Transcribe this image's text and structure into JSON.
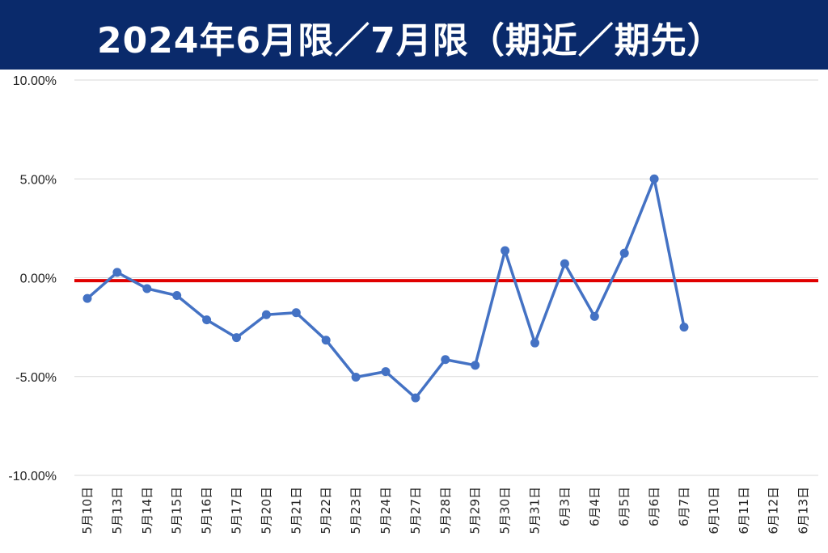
{
  "title": "2024年6月限／7月限（期近／期先）",
  "colors": {
    "title_bg": "#0a2a6b",
    "series": "#4472c4",
    "reference_line": "#e00000",
    "grid": "#d9d9d9"
  },
  "chart_data": {
    "type": "line",
    "title": "2024年6月限／7月限（期近／期先）",
    "xlabel": "",
    "ylabel": "",
    "ylim": [
      -0.1,
      0.1
    ],
    "y_ticks": [
      "10.00%",
      "5.00%",
      "0.00%",
      "-5.00%",
      "-10.00%"
    ],
    "y_tick_values": [
      0.1,
      0.05,
      0.0,
      -0.05,
      -0.1
    ],
    "grid": true,
    "legend": "none",
    "categories": [
      "5月10日",
      "5月13日",
      "5月14日",
      "5月15日",
      "5月16日",
      "5月17日",
      "5月20日",
      "5月21日",
      "5月22日",
      "5月23日",
      "5月24日",
      "5月27日",
      "5月28日",
      "5月29日",
      "5月30日",
      "5月31日",
      "6月3日",
      "6月4日",
      "6月5日",
      "6月6日",
      "6月7日",
      "6月10日",
      "6月11日",
      "6月12日",
      "6月13日"
    ],
    "series": [
      {
        "values": [
          -0.0105,
          0.0027,
          -0.0055,
          -0.009,
          -0.0213,
          -0.0303,
          -0.0187,
          -0.0177,
          -0.0316,
          -0.0503,
          -0.0475,
          -0.0608,
          -0.0414,
          -0.0443,
          0.0137,
          -0.033,
          0.0071,
          -0.0196,
          0.0124,
          0.05,
          -0.025,
          null,
          null,
          null,
          null
        ]
      }
    ],
    "reference_line": {
      "y": -0.0015
    }
  }
}
